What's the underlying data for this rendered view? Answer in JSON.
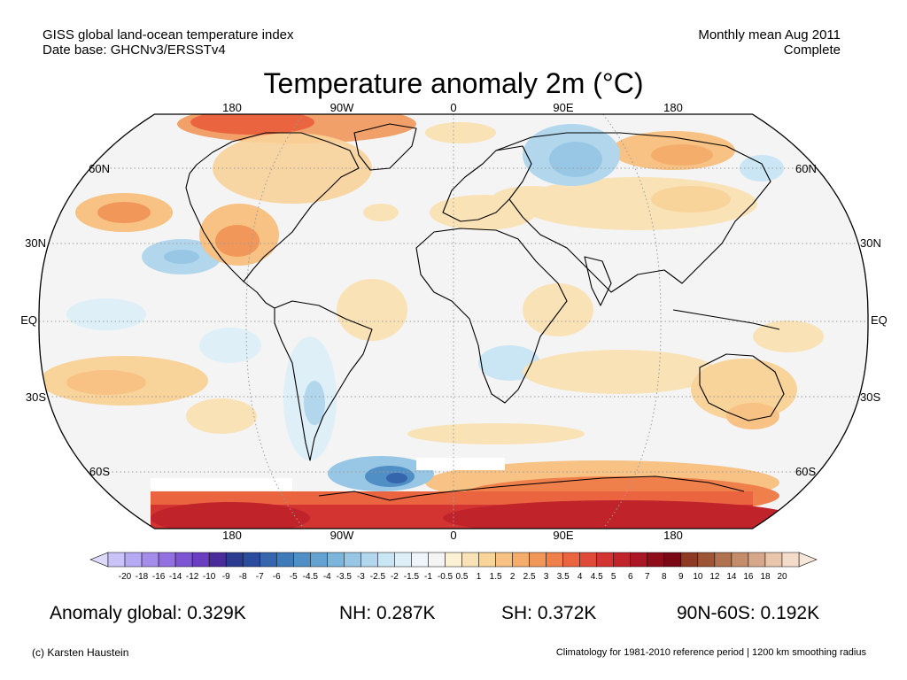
{
  "header": {
    "dataset_line": "GISS global land-ocean temperature index",
    "database_line": "Date base: GHCNv3/ERSSTv4",
    "period_line": "Monthly mean Aug 2011",
    "status_line": "Complete"
  },
  "title": "Temperature anomaly 2m (°C)",
  "map": {
    "projection": "Robinson",
    "lon_labels_top": [
      "180",
      "90W",
      "0",
      "90E",
      "180"
    ],
    "lon_labels_bottom": [
      "180",
      "90W",
      "0",
      "90E",
      "180"
    ],
    "lat_labels_left": [
      "60N",
      "30N",
      "EQ",
      "30S",
      "60S"
    ],
    "lat_labels_right": [
      "60N",
      "30N",
      "EQ",
      "30S",
      "60S"
    ]
  },
  "colorbar": {
    "labels": [
      "-20",
      "-18",
      "-16",
      "-14",
      "-12",
      "-10",
      "-9",
      "-8",
      "-7",
      "-6",
      "-5",
      "-4.5",
      "-4",
      "-3.5",
      "-3",
      "-2.5",
      "-2",
      "-1.5",
      "-1",
      "-0.5",
      "0.5",
      "1",
      "1.5",
      "2",
      "2.5",
      "3",
      "3.5",
      "4",
      "4.5",
      "5",
      "6",
      "7",
      "8",
      "9",
      "10",
      "12",
      "14",
      "16",
      "18",
      "20"
    ],
    "colors": [
      "#c9c3f7",
      "#b6abf2",
      "#a48ceb",
      "#9370e2",
      "#7e56d4",
      "#6a3fbf",
      "#4a2b9c",
      "#2c3b8f",
      "#2b4c9e",
      "#3565ad",
      "#3f7bba",
      "#4f8fc6",
      "#64a3d1",
      "#7cb6dc",
      "#97c7e5",
      "#b2d7ed",
      "#cae5f3",
      "#deeff8",
      "#eef6fb",
      "#f4f4f4",
      "#fbefd4",
      "#f9e2b6",
      "#f8d39a",
      "#f7c283",
      "#f5ad6c",
      "#f2975a",
      "#ef7f4b",
      "#ea6440",
      "#e04a38",
      "#d33431",
      "#c1232b",
      "#ab1624",
      "#8f0c1b",
      "#7a0816",
      "#8e3a22",
      "#9e5535",
      "#b0714e",
      "#c38c6b",
      "#d6a88b",
      "#e8c5ab",
      "#f4dccb"
    ],
    "left_cap_color": "#ddd9fb",
    "right_cap_color": "#f7e6da"
  },
  "stats": {
    "global": "Anomaly global: 0.329K",
    "nh": "NH: 0.287K",
    "sh": "SH: 0.372K",
    "band": "90N-60S: 0.192K"
  },
  "footer": {
    "credit": "(c) Karsten Haustein",
    "note": "Climatology for 1981-2010 reference period | 1200 km smoothing radius"
  }
}
